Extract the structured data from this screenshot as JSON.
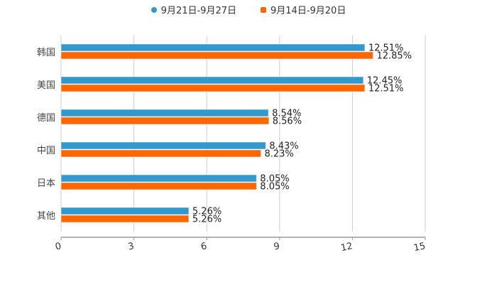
{
  "chart_data": {
    "type": "bar",
    "orientation": "horizontal",
    "categories": [
      "韩国",
      "美国",
      "德国",
      "中国",
      "日本",
      "其他"
    ],
    "series": [
      {
        "name": "9月21日-9月27日",
        "color": "#3399cc",
        "values": [
          12.51,
          12.45,
          8.54,
          8.43,
          8.05,
          5.26
        ],
        "labels": [
          "12.51%",
          "12.45%",
          "8.54%",
          "8.43%",
          "8.05%",
          "5.26%"
        ]
      },
      {
        "name": "9月14日-9月20日",
        "color": "#ff6600",
        "values": [
          12.85,
          12.51,
          8.56,
          8.23,
          8.05,
          5.26
        ],
        "labels": [
          "12.85%",
          "12.51%",
          "8.56%",
          "8.23%",
          "8.05%",
          "5.26%"
        ]
      }
    ],
    "xlim": [
      0,
      15
    ],
    "xticks": [
      "0",
      "3",
      "6",
      "9",
      "12",
      "15"
    ],
    "grid": true,
    "legend": "top-center",
    "title": "",
    "xlabel": "",
    "ylabel": ""
  }
}
